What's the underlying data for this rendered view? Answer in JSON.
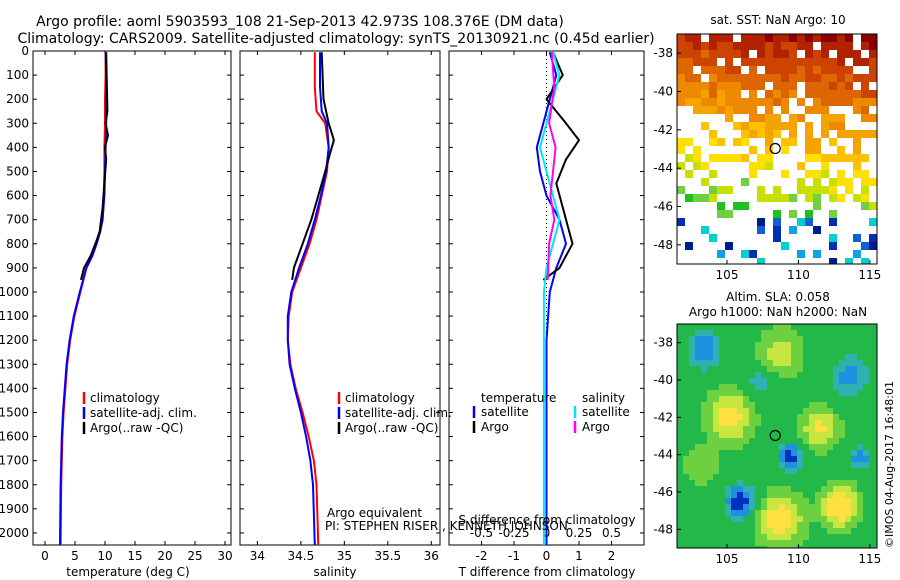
{
  "header": {
    "line1": "Argo profile: aoml 5903593_108 21-Sep-2013 42.973S 108.376E (DM data)",
    "line2": "Climatology: CARS2009. Satellite-adjusted climatology: synTS_20130921.nc (0.45d earlier)"
  },
  "footer": {
    "argo_equiv": "Argo equivalent",
    "pi": "PI: STEPHEN RISER , KENNETH JOHNSON",
    "stamp": "©IMOS 04-Aug-2017 16:48:01"
  },
  "colors": {
    "climatology": "#ff0000",
    "satellite": "#0000ff",
    "argo": "#000000",
    "sal_satellite": "#00e5ee",
    "sal_argo": "#ff00ff",
    "marker": "#000000"
  },
  "chart_data": [
    {
      "type": "line",
      "id": "temp",
      "xlabel": "temperature (deg C)",
      "xlim": [
        -2,
        31
      ],
      "ylim": [
        0,
        2050
      ],
      "xticks": [
        0,
        5,
        10,
        15,
        20,
        25,
        30
      ],
      "yticks": [
        0,
        100,
        200,
        300,
        400,
        500,
        600,
        700,
        800,
        900,
        1000,
        1100,
        1200,
        1300,
        1400,
        1500,
        1600,
        1700,
        1800,
        1900,
        2000
      ],
      "legend": [
        "climatology",
        "satellite-adj. clim.",
        "Argo(..raw -QC)"
      ],
      "series": [
        {
          "name": "climatology",
          "color": "#ff0000",
          "x": [
            10.1,
            10.1,
            10.0,
            10.0,
            9.9,
            9.9,
            9.8,
            9.6,
            9.2,
            8.5,
            7.8,
            6.9,
            5.9,
            4.9,
            4.2,
            3.7,
            3.4,
            3.1,
            2.9,
            2.7,
            2.6
          ],
          "y": [
            5,
            100,
            200,
            300,
            400,
            500,
            600,
            700,
            750,
            800,
            850,
            900,
            1000,
            1100,
            1200,
            1300,
            1400,
            1500,
            1600,
            1800,
            2050
          ]
        },
        {
          "name": "satellite-adj. clim.",
          "color": "#0000ff",
          "x": [
            10.1,
            10.2,
            10.2,
            10.2,
            10.1,
            10.0,
            9.9,
            9.6,
            9.2,
            8.6,
            7.9,
            6.9,
            5.8,
            4.8,
            4.1,
            3.6,
            3.3,
            3.0,
            2.8,
            2.6,
            2.5
          ],
          "y": [
            5,
            100,
            200,
            300,
            400,
            500,
            600,
            700,
            750,
            800,
            850,
            900,
            1000,
            1100,
            1200,
            1300,
            1400,
            1500,
            1600,
            1800,
            2050
          ]
        },
        {
          "name": "Argo(..raw -QC)",
          "color": "#000000",
          "x": [
            10.2,
            10.4,
            10.1,
            10.5,
            10.0,
            10.2,
            9.9,
            9.6,
            9.1,
            8.4,
            7.6,
            6.5,
            6.0
          ],
          "y": [
            5,
            250,
            300,
            350,
            400,
            450,
            550,
            650,
            750,
            800,
            850,
            900,
            950
          ]
        }
      ]
    },
    {
      "type": "line",
      "id": "sal",
      "xlabel": "salinity",
      "xlim": [
        33.8,
        36.1
      ],
      "ylim": [
        0,
        2050
      ],
      "xticks": [
        34,
        34.5,
        35,
        35.5,
        36
      ],
      "legend": [
        "climatology",
        "satellite-adj. clim.",
        "Argo(..raw -QC)"
      ],
      "series": [
        {
          "name": "climatology",
          "color": "#ff0000",
          "x": [
            34.66,
            34.66,
            34.68,
            34.78,
            34.82,
            34.8,
            34.74,
            34.68,
            34.6,
            34.5,
            34.4,
            34.36,
            34.35,
            34.38,
            34.44,
            34.52,
            34.59,
            34.65,
            34.68,
            34.7
          ],
          "y": [
            5,
            150,
            250,
            300,
            400,
            500,
            600,
            700,
            800,
            900,
            1000,
            1100,
            1200,
            1300,
            1400,
            1500,
            1600,
            1700,
            1800,
            2050
          ]
        },
        {
          "name": "satellite-adj. clim.",
          "color": "#0000ff",
          "x": [
            34.72,
            34.72,
            34.74,
            34.8,
            34.82,
            34.79,
            34.73,
            34.66,
            34.58,
            34.48,
            34.39,
            34.35,
            34.35,
            34.37,
            34.43,
            34.5,
            34.56,
            34.61,
            34.64,
            34.66
          ],
          "y": [
            5,
            150,
            250,
            300,
            400,
            500,
            600,
            700,
            800,
            900,
            1000,
            1100,
            1200,
            1300,
            1400,
            1500,
            1600,
            1700,
            1800,
            2050
          ]
        },
        {
          "name": "Argo(..raw -QC)",
          "color": "#000000",
          "x": [
            34.74,
            34.76,
            34.82,
            34.88,
            34.84,
            34.78,
            34.7,
            34.62,
            34.52,
            34.42,
            34.4
          ],
          "y": [
            5,
            200,
            300,
            370,
            420,
            500,
            600,
            700,
            800,
            900,
            950
          ]
        }
      ]
    },
    {
      "type": "line",
      "id": "diff",
      "xlabel": "T difference from climatology",
      "xlabel2": "S difference from climatology",
      "xlim": [
        -3,
        3
      ],
      "ylim": [
        0,
        2050
      ],
      "xticks": [
        -2,
        -1,
        0,
        1,
        2
      ],
      "xticks_top": [
        -0.5,
        -0.25,
        0,
        0.25,
        0.5
      ],
      "legend_temperature": "temperature",
      "legend_salinity": "salinity",
      "legend_items": [
        "satellite",
        "Argo",
        "satellite",
        "Argo"
      ],
      "series": [
        {
          "name": "temperature satellite",
          "color": "#0000ff",
          "x": [
            0.1,
            0.3,
            0.1,
            -0.1,
            -0.3,
            -0.2,
            0.0,
            0.4,
            0.6,
            0.3,
            0.1,
            0.0,
            0.0,
            0.0,
            0.0
          ],
          "y": [
            5,
            100,
            200,
            300,
            400,
            500,
            600,
            700,
            800,
            900,
            1000,
            1200,
            1400,
            1700,
            2050
          ]
        },
        {
          "name": "temperature Argo",
          "color": "#000000",
          "x": [
            0.2,
            0.5,
            0.0,
            0.6,
            1.0,
            0.6,
            0.3,
            0.5,
            0.8,
            0.4,
            -0.1
          ],
          "y": [
            5,
            100,
            200,
            300,
            370,
            450,
            550,
            650,
            800,
            900,
            950
          ]
        },
        {
          "name": "salinity satellite",
          "color": "#00e5ee",
          "x": [
            0.05,
            0.1,
            0.05,
            0.0,
            -0.05,
            0.0,
            0.05,
            0.1,
            0.05,
            0.0,
            -0.02,
            -0.02,
            -0.02
          ],
          "y": [
            5,
            100,
            200,
            300,
            400,
            500,
            600,
            700,
            800,
            900,
            1000,
            1500,
            2050
          ]
        },
        {
          "name": "salinity Argo",
          "color": "#ff00ff",
          "x": [
            0.04,
            0.06,
            0.02,
            0.07,
            0.05,
            0.03,
            0.06,
            0.02,
            0.01
          ],
          "y": [
            5,
            150,
            300,
            400,
            500,
            600,
            700,
            800,
            950
          ]
        }
      ]
    },
    {
      "type": "heatmap",
      "id": "sst_map",
      "title": "sat. SST: NaN Argo: 10",
      "xlim": [
        101.5,
        115.5
      ],
      "ylim": [
        -49,
        -37
      ],
      "xticks": [
        105,
        110,
        115
      ],
      "yticks": [
        -38,
        -40,
        -42,
        -44,
        -46,
        -48
      ],
      "marker": {
        "lon": 108.376,
        "lat": -42.973
      }
    },
    {
      "type": "heatmap",
      "id": "sla_map",
      "title1": "Altim. SLA: 0.058",
      "title2": "Argo h1000: NaN h2000: NaN",
      "xlim": [
        101.5,
        115.5
      ],
      "ylim": [
        -49,
        -37
      ],
      "xticks": [
        105,
        110,
        115
      ],
      "yticks": [
        -38,
        -40,
        -42,
        -44,
        -46,
        -48
      ],
      "marker": {
        "lon": 108.376,
        "lat": -42.973
      }
    }
  ]
}
